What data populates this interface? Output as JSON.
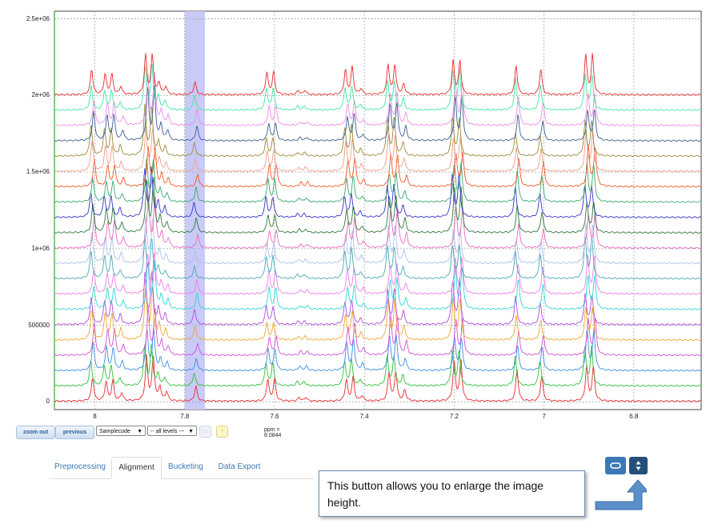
{
  "chart_data": {
    "type": "line",
    "title": "",
    "xlabel": "",
    "ylabel": "",
    "x_reversed": true,
    "xlim": [
      8.09,
      6.65
    ],
    "ylim": [
      -50000,
      2550000
    ],
    "x_ticks": [
      8,
      7.8,
      7.6,
      7.4,
      7.2,
      7,
      6.8
    ],
    "x_tick_labels": [
      "8",
      "7.8",
      "7.6",
      "7.4",
      "7.2",
      "7",
      "6.8"
    ],
    "y_ticks": [
      0,
      500000,
      1000000,
      1500000,
      2000000,
      2500000
    ],
    "y_tick_labels": [
      "0",
      "500000",
      "1e+06",
      "1.5e+06",
      "2e+06",
      "2.5e+06"
    ],
    "grid": true,
    "legend": "none",
    "highlight_region": [
      7.8,
      7.755
    ],
    "highlight_color": "#c9caf6",
    "series_count": 21,
    "series_offset_step": 100000,
    "series_colors": [
      "#e8292d",
      "#2fbf3a",
      "#3a8fe3",
      "#d24fd8",
      "#f0a630",
      "#b04be0",
      "#2fd6d6",
      "#f07be8",
      "#4aa8b8",
      "#aabfec",
      "#e56bbf",
      "#2e7a3a",
      "#3434c4",
      "#38a86f",
      "#f05a28",
      "#f09d86",
      "#9a8a3a",
      "#3a5f91",
      "#f08ae8",
      "#40e8a0",
      "#e82a2a"
    ],
    "peaks": [
      {
        "ppm": 8.005,
        "height": 180000
      },
      {
        "ppm": 7.975,
        "height": 150000
      },
      {
        "ppm": 7.96,
        "height": 150000
      },
      {
        "ppm": 7.94,
        "height": 60000
      },
      {
        "ppm": 7.885,
        "height": 300000
      },
      {
        "ppm": 7.87,
        "height": 300000
      },
      {
        "ppm": 7.855,
        "height": 90000
      },
      {
        "ppm": 7.84,
        "height": 60000
      },
      {
        "ppm": 7.775,
        "height": 90000
      },
      {
        "ppm": 7.615,
        "height": 130000
      },
      {
        "ppm": 7.6,
        "height": 130000
      },
      {
        "ppm": 7.545,
        "height": 25000
      },
      {
        "ppm": 7.53,
        "height": 25000
      },
      {
        "ppm": 7.44,
        "height": 160000
      },
      {
        "ppm": 7.425,
        "height": 180000
      },
      {
        "ppm": 7.405,
        "height": 40000
      },
      {
        "ppm": 7.345,
        "height": 220000
      },
      {
        "ppm": 7.33,
        "height": 220000
      },
      {
        "ppm": 7.31,
        "height": 80000
      },
      {
        "ppm": 7.2,
        "height": 250000
      },
      {
        "ppm": 7.185,
        "height": 250000
      },
      {
        "ppm": 7.06,
        "height": 180000
      },
      {
        "ppm": 7.005,
        "height": 150000
      },
      {
        "ppm": 6.905,
        "height": 230000
      },
      {
        "ppm": 6.89,
        "height": 230000
      }
    ]
  },
  "toolbar": {
    "zoom_out_label": "zoom out",
    "previous_label": "previous",
    "sample_select": "Samplecode",
    "level_select": "-- all levels ---",
    "ppm_readout": "ppm = 8.0844"
  },
  "tabs": [
    {
      "label": "Preprocessing",
      "active": false
    },
    {
      "label": "Alignment",
      "active": true
    },
    {
      "label": "Bucketing",
      "active": false
    },
    {
      "label": "Data Export",
      "active": false
    }
  ],
  "callout": {
    "text": "This button allows you to enlarge the image height."
  },
  "colors": {
    "accent": "#3a79b5",
    "accent_dark": "#244f78",
    "arrow": "#5b8fc9"
  }
}
